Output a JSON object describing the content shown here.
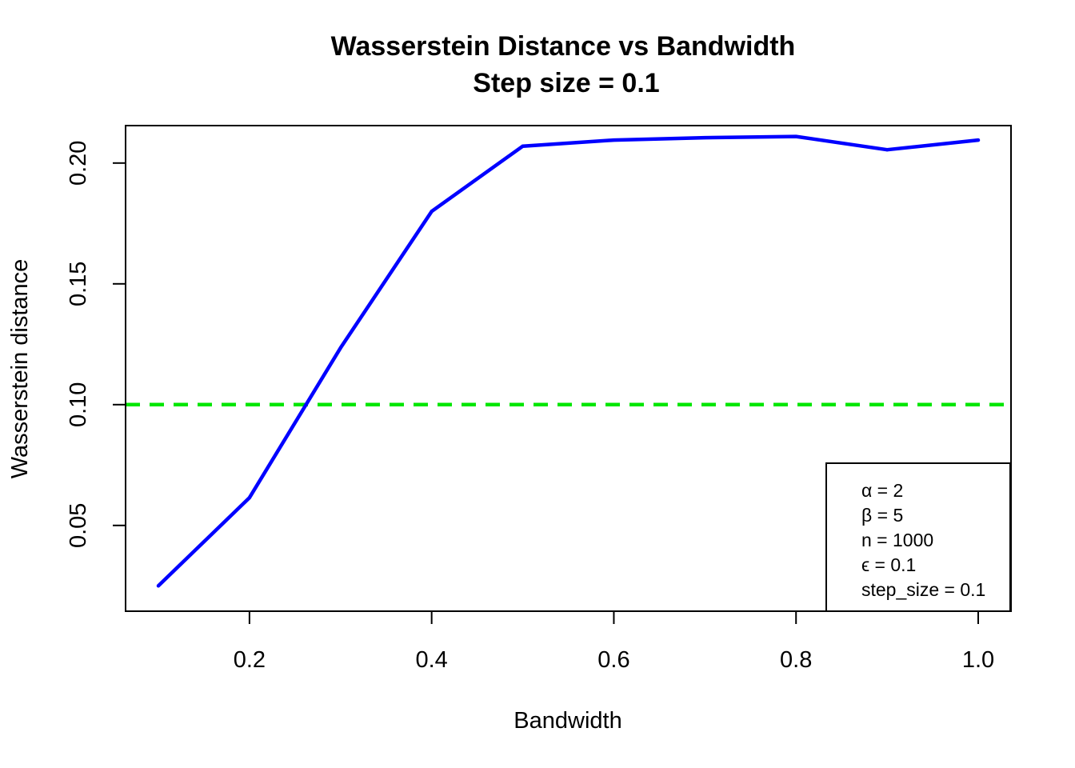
{
  "chart_data": {
    "type": "line",
    "title": "Wasserstein Distance vs Bandwidth",
    "subtitle": "Step size = 0.1",
    "xlabel": "Bandwidth",
    "ylabel": "Wasserstein distance",
    "xlim": [
      0.064,
      1.036
    ],
    "ylim": [
      0.0145,
      0.2155
    ],
    "x_ticks": [
      0.2,
      0.4,
      0.6,
      0.8,
      1.0
    ],
    "x_tick_labels": [
      "0.2",
      "0.4",
      "0.6",
      "0.8",
      "1.0"
    ],
    "y_ticks": [
      0.05,
      0.1,
      0.15,
      0.2
    ],
    "y_tick_labels": [
      "0.05",
      "0.10",
      "0.15",
      "0.20"
    ],
    "grid": false,
    "series": [
      {
        "x": [
          0.1,
          0.2,
          0.3,
          0.4,
          0.5,
          0.6,
          0.7,
          0.8,
          0.9,
          1.0
        ],
        "values": [
          0.025,
          0.0615,
          0.1235,
          0.18,
          0.207,
          0.2095,
          0.2105,
          0.211,
          0.2055,
          0.2095
        ],
        "color": "#0000ff",
        "style": "solid"
      }
    ],
    "reference_lines": [
      {
        "y": 0.1,
        "color": "#00e600",
        "style": "dashed"
      }
    ],
    "legend": {
      "position": "bottom-right",
      "entries": [
        "α = 2",
        "β = 5",
        "n = 1000",
        "ϵ = 0.1",
        "step_size = 0.1"
      ]
    }
  }
}
